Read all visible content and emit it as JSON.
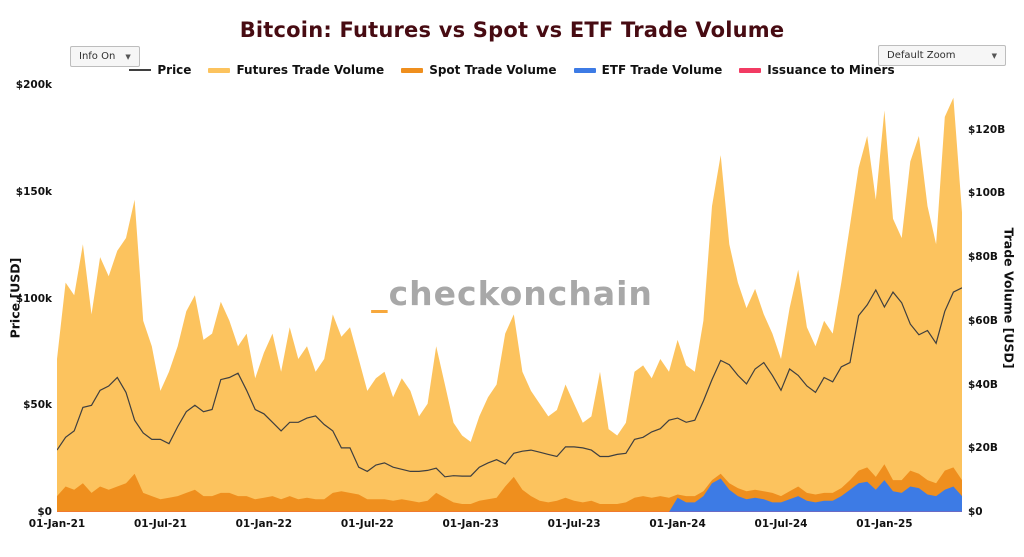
{
  "header": {
    "title": "Bitcoin: Futures vs Spot vs ETF Trade Volume"
  },
  "controls": {
    "info_toggle": "Info On",
    "zoom_select": "Default Zoom",
    "caret": "▼"
  },
  "watermark": {
    "underscore": "_",
    "name": "checkonchain"
  },
  "colors": {
    "title": "#470b12",
    "watermark_accent": "#f7a83c",
    "watermark_gray": "#a8a8a8"
  },
  "chart_data": {
    "type": "area",
    "title": "Bitcoin: Futures vs Spot vs ETF Trade Volume",
    "x_count": 106,
    "x_start": "01-Jan-2021",
    "x_end": "01-Jun-2025",
    "x_ticks": [
      {
        "index": 0,
        "label": "01-Jan-21"
      },
      {
        "index": 12,
        "label": "01-Jul-21"
      },
      {
        "index": 24,
        "label": "01-Jan-22"
      },
      {
        "index": 36,
        "label": "01-Jul-22"
      },
      {
        "index": 48,
        "label": "01-Jan-23"
      },
      {
        "index": 60,
        "label": "01-Jul-23"
      },
      {
        "index": 72,
        "label": "01-Jan-24"
      },
      {
        "index": 84,
        "label": "01-Jul-24"
      },
      {
        "index": 96,
        "label": "01-Jan-25"
      }
    ],
    "left_axis": {
      "label": "Price [USD]",
      "max": 200000,
      "ticks": [
        {
          "value": 0,
          "label": "$0"
        },
        {
          "value": 50000,
          "label": "$50k"
        },
        {
          "value": 100000,
          "label": "$100k"
        },
        {
          "value": 150000,
          "label": "$150k"
        },
        {
          "value": 200000,
          "label": "$200k"
        }
      ]
    },
    "right_axis": {
      "label": "Trade Volume [USD]",
      "max": 134,
      "unit": "billion USD",
      "ticks": [
        {
          "value": 0,
          "label": "$0"
        },
        {
          "value": 20,
          "label": "$20B"
        },
        {
          "value": 40,
          "label": "$40B"
        },
        {
          "value": 60,
          "label": "$60B"
        },
        {
          "value": 80,
          "label": "$80B"
        },
        {
          "value": 100,
          "label": "$100B"
        },
        {
          "value": 120,
          "label": "$120B"
        }
      ]
    },
    "series": [
      {
        "name": "Price",
        "axis": "left",
        "type": "line",
        "color": "#3f3f3f",
        "values": [
          29000,
          35000,
          38000,
          49000,
          50000,
          57000,
          59000,
          63000,
          56000,
          43000,
          37000,
          34000,
          34000,
          32000,
          40000,
          47000,
          50000,
          47000,
          48000,
          62000,
          63000,
          65000,
          57000,
          48000,
          46000,
          42000,
          38000,
          42000,
          42000,
          44000,
          45000,
          41000,
          38000,
          30000,
          30000,
          21000,
          19000,
          22000,
          23000,
          21000,
          20000,
          19000,
          19000,
          19500,
          20500,
          16500,
          17000,
          16800,
          16800,
          21000,
          23000,
          24500,
          22500,
          27500,
          28500,
          29000,
          28000,
          27000,
          26000,
          30500,
          30500,
          30000,
          29000,
          26000,
          26000,
          27000,
          27500,
          34000,
          35000,
          37500,
          39000,
          43000,
          44000,
          42000,
          43000,
          52000,
          62000,
          71000,
          69000,
          64000,
          60000,
          67000,
          70000,
          64000,
          57000,
          67000,
          64000,
          59000,
          56000,
          63000,
          61000,
          68000,
          70000,
          92000,
          97000,
          104000,
          96000,
          103000,
          98000,
          88000,
          83000,
          85000,
          79000,
          94000,
          103000,
          105000
        ]
      },
      {
        "name": "Futures Trade Volume",
        "axis": "right",
        "type": "area",
        "color": "#fcc35e",
        "values": [
          48,
          72,
          68,
          84,
          62,
          80,
          74,
          82,
          86,
          98,
          60,
          52,
          38,
          44,
          52,
          63,
          68,
          54,
          56,
          66,
          60,
          52,
          56,
          42,
          50,
          56,
          44,
          58,
          48,
          52,
          44,
          48,
          62,
          55,
          58,
          48,
          38,
          42,
          44,
          36,
          42,
          38,
          30,
          34,
          52,
          40,
          28,
          24,
          22,
          30,
          36,
          40,
          56,
          62,
          44,
          38,
          34,
          30,
          32,
          40,
          34,
          28,
          30,
          44,
          26,
          24,
          28,
          44,
          46,
          42,
          48,
          44,
          54,
          46,
          44,
          60,
          96,
          112,
          84,
          72,
          64,
          70,
          62,
          56,
          48,
          64,
          76,
          58,
          52,
          60,
          56,
          72,
          90,
          108,
          118,
          98,
          126,
          92,
          86,
          110,
          118,
          96,
          84,
          124,
          130,
          94
        ]
      },
      {
        "name": "Spot Trade Volume",
        "axis": "right",
        "type": "area",
        "color": "#ef8f1e",
        "values": [
          5,
          8,
          7,
          9,
          6,
          8,
          7,
          8,
          9,
          12,
          6,
          5,
          4,
          4.5,
          5,
          6,
          7,
          5,
          5,
          6,
          6,
          5,
          5,
          4,
          4.5,
          5,
          4,
          5,
          4,
          4.5,
          4,
          4,
          6,
          6.5,
          6,
          5.5,
          4,
          4,
          4,
          3.5,
          4,
          3.5,
          3,
          3.5,
          6,
          4.5,
          3,
          2.5,
          2.5,
          3.5,
          4,
          4.5,
          8,
          11,
          7,
          5,
          3.5,
          3,
          3.5,
          4.5,
          3.5,
          3,
          3.5,
          2.5,
          2.5,
          2.5,
          3,
          4.5,
          5,
          4.5,
          5,
          4.5,
          5.5,
          5,
          5,
          6.5,
          10,
          12,
          9,
          7.5,
          6.5,
          7,
          6.5,
          6,
          5,
          6.5,
          8,
          6,
          5.5,
          6,
          6,
          7.5,
          10,
          13,
          14,
          11,
          15,
          10,
          10,
          13,
          12,
          10,
          9,
          13,
          14,
          10
        ]
      },
      {
        "name": "ETF Trade Volume",
        "axis": "right",
        "type": "area",
        "color": "#3d7be5",
        "start_index": 72,
        "values": [
          4.5,
          3,
          3,
          5,
          9,
          10.5,
          7,
          5,
          4,
          4.5,
          4,
          3,
          3,
          4,
          5,
          3.5,
          3,
          3.5,
          3.5,
          5,
          7,
          9,
          9.5,
          7,
          10,
          6.5,
          6,
          8,
          7.5,
          5.5,
          5,
          7,
          8,
          5
        ]
      },
      {
        "name": "Issuance to Miners",
        "axis": "right",
        "type": "area",
        "color": "#f23b63",
        "constant": 0.05
      }
    ]
  }
}
